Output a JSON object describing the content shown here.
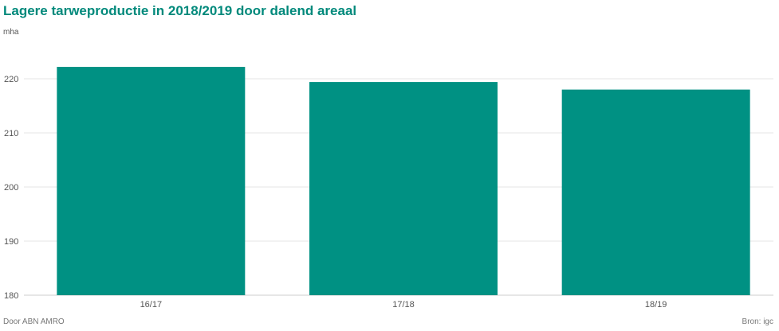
{
  "title": "Lagere tarweproductie in 2018/2019 door dalend areaal",
  "unit": "mha",
  "footer": {
    "left": "Door ABN AMRO",
    "right": "Bron: igc"
  },
  "colors": {
    "bar": "#009183",
    "grid": "#e6e6e6",
    "title": "#00897b"
  },
  "chart_data": {
    "type": "bar",
    "title": "Lagere tarweproductie in 2018/2019 door dalend areaal",
    "ylabel": "mha",
    "categories": [
      "16/17",
      "17/18",
      "18/19"
    ],
    "values": [
      222.2,
      219.4,
      218.0
    ],
    "ylim": [
      180,
      222
    ],
    "yticks": [
      180,
      190,
      200,
      210,
      220
    ],
    "grid": true,
    "legend": "none"
  }
}
